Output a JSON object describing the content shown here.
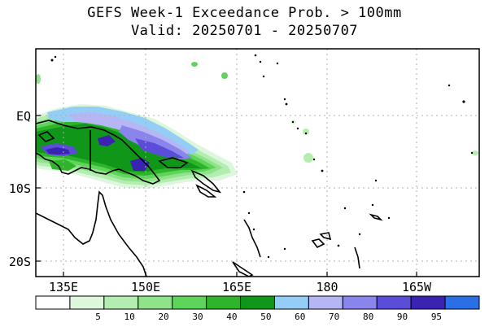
{
  "title": "GEFS Week-1 Exceedance Prob. > 100mm",
  "subtitle": "Valid: 20250701 - 20250707",
  "lat_labels": [
    "EQ",
    "10S",
    "20S"
  ],
  "lon_labels": [
    "135E",
    "150E",
    "165E",
    "180",
    "165W"
  ],
  "colorbar": {
    "bins": [
      {
        "label": "",
        "color": "#ffffff"
      },
      {
        "label": "5",
        "color": "#ddf7dd"
      },
      {
        "label": "10",
        "color": "#b4edb0"
      },
      {
        "label": "20",
        "color": "#8fe48b"
      },
      {
        "label": "30",
        "color": "#5fd45b"
      },
      {
        "label": "40",
        "color": "#2fb52a"
      },
      {
        "label": "50",
        "color": "#10971a"
      },
      {
        "label": "60",
        "color": "#94cdf6"
      },
      {
        "label": "70",
        "color": "#b6b6f4"
      },
      {
        "label": "80",
        "color": "#8a85ec"
      },
      {
        "label": "90",
        "color": "#5a4ed8"
      },
      {
        "label": "95",
        "color": "#3a23b2"
      },
      {
        "label": "",
        "color": "#2a6fe6"
      }
    ]
  },
  "colors": {
    "grid": "#b0b0b0",
    "coast": "#000000"
  }
}
